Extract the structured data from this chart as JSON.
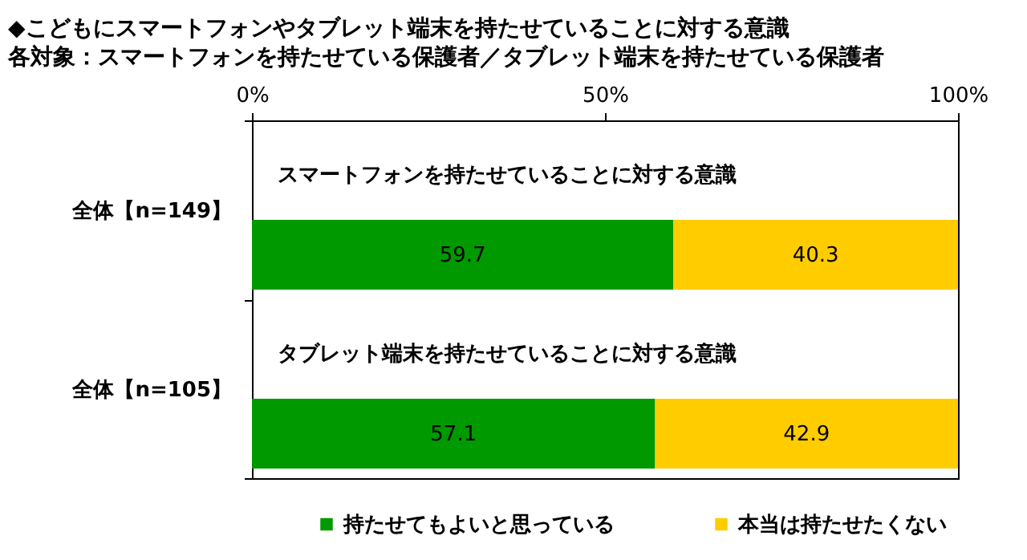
{
  "chart_data": {
    "type": "bar",
    "orientation": "horizontal",
    "stacked": true,
    "data_labels": true,
    "title": "◆こどもにスマートフォンやタブレット端末を持たせていることに対する意識",
    "subtitle": "各対象：スマートフォンを持たせている保護者／タブレット端末を持たせている保護者",
    "categories": [
      "全体【n=149】",
      "全体【n=105】"
    ],
    "series": [
      {
        "name": "持たせてもよいと思っている",
        "color": "#009900",
        "values": [
          59.7,
          57.1
        ]
      },
      {
        "name": "本当は持たせたくない",
        "color": "#ffcc00",
        "values": [
          40.3,
          42.9
        ]
      }
    ],
    "xlim": [
      0,
      100
    ],
    "xticks": [
      {
        "value": 0,
        "label": "0%"
      },
      {
        "value": 50,
        "label": "50%"
      },
      {
        "value": 100,
        "label": "100%"
      }
    ],
    "annotations": [
      "スマートフォンを持たせていることに対する意識",
      "タブレット端末を持たせていることに対する意識"
    ],
    "legend": "bottom",
    "grid": false
  }
}
